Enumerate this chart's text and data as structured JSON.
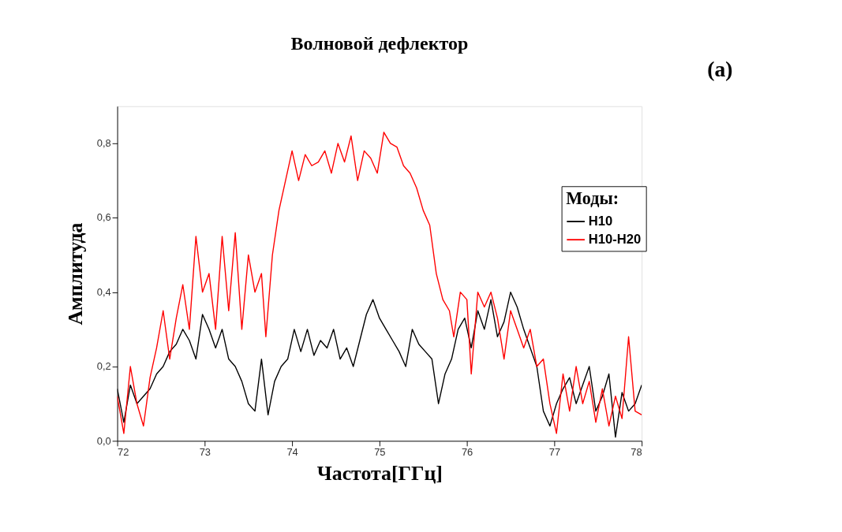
{
  "chart_data": {
    "type": "line",
    "title": "Волновой дефлектор",
    "xlabel": "Частота[ГГц]",
    "ylabel": "Амплитуда",
    "legend_title": "Моды:",
    "annotations": [
      "(a)"
    ],
    "xlim": [
      72,
      78
    ],
    "xticks": [
      72,
      73,
      74,
      75,
      76,
      77,
      78
    ],
    "ylim": [
      0,
      0.9
    ],
    "yticks": [
      {
        "value": 0,
        "label": "0,0"
      },
      {
        "value": 0.2,
        "label": "0,2"
      },
      {
        "value": 0.4,
        "label": "0,4"
      },
      {
        "value": 0.6,
        "label": "0,6"
      },
      {
        "value": 0.8,
        "label": "0,8"
      }
    ],
    "grid": false,
    "legend": "top right",
    "marker": "none",
    "line_style": "solid",
    "series": [
      {
        "name": "H10",
        "color": "#000000",
        "x": [
          72.0,
          72.075,
          72.15,
          72.225,
          72.3,
          72.375,
          72.45,
          72.525,
          72.6,
          72.675,
          72.75,
          72.825,
          72.9,
          72.975,
          73.05,
          73.125,
          73.2,
          73.275,
          73.35,
          73.425,
          73.5,
          73.575,
          73.65,
          73.725,
          73.8,
          73.875,
          73.95,
          74.025,
          74.1,
          74.175,
          74.25,
          74.325,
          74.4,
          74.475,
          74.55,
          74.625,
          74.7,
          74.775,
          74.85,
          74.925,
          75.0,
          75.075,
          75.15,
          75.225,
          75.3,
          75.375,
          75.45,
          75.525,
          75.6,
          75.675,
          75.75,
          75.825,
          75.9,
          75.975,
          76.05,
          76.125,
          76.2,
          76.275,
          76.35,
          76.425,
          76.5,
          76.575,
          76.65,
          76.725,
          76.8,
          76.875,
          76.95,
          77.025,
          77.1,
          77.175,
          77.25,
          77.325,
          77.4,
          77.475,
          77.55,
          77.625,
          77.7,
          77.775,
          77.85,
          77.925,
          78.0
        ],
        "values": [
          0.14,
          0.05,
          0.15,
          0.1,
          0.12,
          0.14,
          0.18,
          0.2,
          0.24,
          0.26,
          0.3,
          0.27,
          0.22,
          0.34,
          0.3,
          0.25,
          0.3,
          0.22,
          0.2,
          0.16,
          0.1,
          0.08,
          0.22,
          0.07,
          0.16,
          0.2,
          0.22,
          0.3,
          0.24,
          0.3,
          0.23,
          0.27,
          0.25,
          0.3,
          0.22,
          0.25,
          0.2,
          0.27,
          0.34,
          0.38,
          0.33,
          0.3,
          0.27,
          0.24,
          0.2,
          0.3,
          0.26,
          0.24,
          0.22,
          0.1,
          0.18,
          0.22,
          0.3,
          0.33,
          0.25,
          0.35,
          0.3,
          0.38,
          0.28,
          0.32,
          0.4,
          0.36,
          0.3,
          0.25,
          0.2,
          0.08,
          0.04,
          0.1,
          0.14,
          0.17,
          0.1,
          0.15,
          0.2,
          0.08,
          0.12,
          0.18,
          0.01,
          0.13,
          0.08,
          0.1,
          0.15
        ]
      },
      {
        "name": "H10-H20",
        "color": "#ff0000",
        "x": [
          72.0,
          72.075,
          72.15,
          72.225,
          72.3,
          72.375,
          72.45,
          72.525,
          72.6,
          72.675,
          72.75,
          72.825,
          72.9,
          72.975,
          73.05,
          73.125,
          73.2,
          73.275,
          73.35,
          73.425,
          73.5,
          73.575,
          73.65,
          73.7,
          73.775,
          73.85,
          73.925,
          74.0,
          74.075,
          74.15,
          74.225,
          74.3,
          74.375,
          74.45,
          74.525,
          74.6,
          74.675,
          74.75,
          74.825,
          74.9,
          74.975,
          75.05,
          75.125,
          75.2,
          75.275,
          75.35,
          75.425,
          75.5,
          75.575,
          75.65,
          75.725,
          75.8,
          75.85,
          75.925,
          76.0,
          76.05,
          76.125,
          76.2,
          76.275,
          76.35,
          76.425,
          76.5,
          76.575,
          76.65,
          76.725,
          76.8,
          76.875,
          76.95,
          77.025,
          77.1,
          77.175,
          77.25,
          77.325,
          77.4,
          77.475,
          77.55,
          77.625,
          77.7,
          77.775,
          77.85,
          77.925,
          78.0
        ],
        "values": [
          0.12,
          0.02,
          0.2,
          0.1,
          0.04,
          0.17,
          0.25,
          0.35,
          0.22,
          0.33,
          0.42,
          0.3,
          0.55,
          0.4,
          0.45,
          0.3,
          0.55,
          0.35,
          0.56,
          0.3,
          0.5,
          0.4,
          0.45,
          0.28,
          0.5,
          0.62,
          0.7,
          0.78,
          0.7,
          0.77,
          0.74,
          0.75,
          0.78,
          0.72,
          0.8,
          0.75,
          0.82,
          0.7,
          0.78,
          0.76,
          0.72,
          0.83,
          0.8,
          0.79,
          0.74,
          0.72,
          0.68,
          0.62,
          0.58,
          0.45,
          0.38,
          0.35,
          0.28,
          0.4,
          0.38,
          0.18,
          0.4,
          0.36,
          0.4,
          0.33,
          0.22,
          0.35,
          0.3,
          0.25,
          0.3,
          0.2,
          0.22,
          0.1,
          0.02,
          0.18,
          0.08,
          0.2,
          0.1,
          0.16,
          0.05,
          0.14,
          0.04,
          0.12,
          0.06,
          0.28,
          0.08,
          0.07
        ]
      }
    ]
  }
}
